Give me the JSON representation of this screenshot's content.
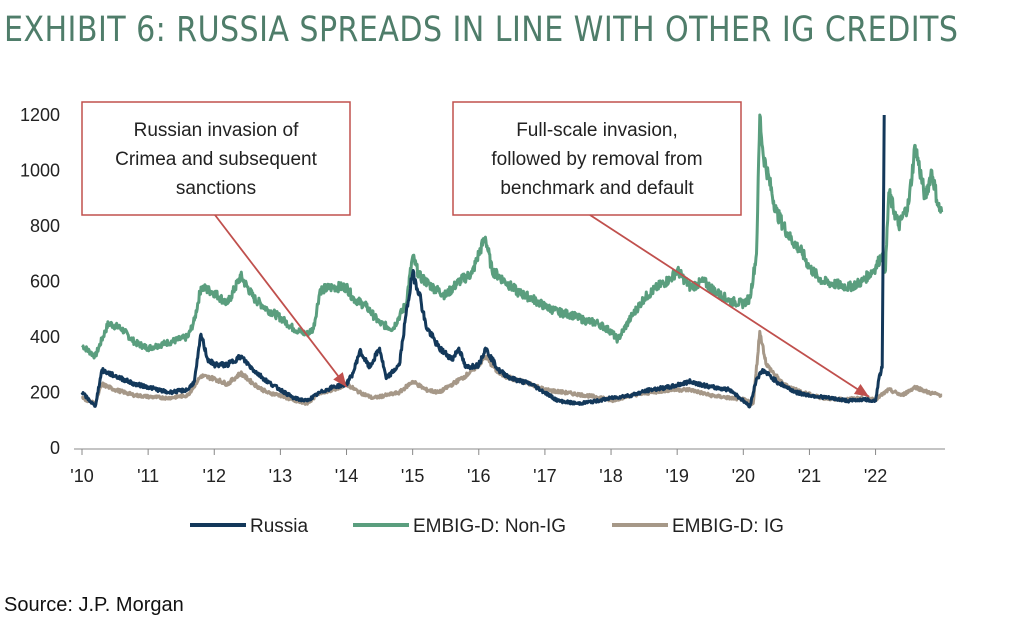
{
  "title": "EXHIBIT 6: RUSSIA SPREADS IN LINE WITH OTHER IG CREDITS",
  "source": "Source: J.P. Morgan",
  "chart_data": {
    "type": "line",
    "ylim": [
      0,
      1200
    ],
    "yticks": [
      0,
      200,
      400,
      600,
      800,
      1000,
      1200
    ],
    "xlim": [
      2010,
      2023
    ],
    "xticks": [
      {
        "value": 2010,
        "label": "'10"
      },
      {
        "value": 2011,
        "label": "'11"
      },
      {
        "value": 2012,
        "label": "'12"
      },
      {
        "value": 2013,
        "label": "'13"
      },
      {
        "value": 2014,
        "label": "'14"
      },
      {
        "value": 2015,
        "label": "'15"
      },
      {
        "value": 2016,
        "label": "'16"
      },
      {
        "value": 2017,
        "label": "'17"
      },
      {
        "value": 2018,
        "label": "'18"
      },
      {
        "value": 2019,
        "label": "'19"
      },
      {
        "value": 2020,
        "label": "'20"
      },
      {
        "value": 2021,
        "label": "'21"
      },
      {
        "value": 2022,
        "label": "'22"
      }
    ],
    "legend_position": "bottom",
    "series": [
      {
        "name": "EMBIG-D: Non-IG",
        "color": "#5a9e7e",
        "points": [
          [
            2010.0,
            370
          ],
          [
            2010.2,
            330
          ],
          [
            2010.4,
            450
          ],
          [
            2010.6,
            430
          ],
          [
            2010.8,
            380
          ],
          [
            2011.0,
            360
          ],
          [
            2011.3,
            380
          ],
          [
            2011.6,
            400
          ],
          [
            2011.7,
            460
          ],
          [
            2011.8,
            580
          ],
          [
            2012.0,
            560
          ],
          [
            2012.2,
            520
          ],
          [
            2012.4,
            620
          ],
          [
            2012.6,
            540
          ],
          [
            2012.8,
            500
          ],
          [
            2013.0,
            470
          ],
          [
            2013.2,
            430
          ],
          [
            2013.4,
            410
          ],
          [
            2013.5,
            430
          ],
          [
            2013.6,
            570
          ],
          [
            2013.8,
            580
          ],
          [
            2014.0,
            580
          ],
          [
            2014.1,
            540
          ],
          [
            2014.3,
            510
          ],
          [
            2014.5,
            450
          ],
          [
            2014.7,
            430
          ],
          [
            2014.9,
            520
          ],
          [
            2015.0,
            690
          ],
          [
            2015.1,
            620
          ],
          [
            2015.3,
            580
          ],
          [
            2015.5,
            550
          ],
          [
            2015.7,
            600
          ],
          [
            2015.9,
            630
          ],
          [
            2016.0,
            700
          ],
          [
            2016.1,
            760
          ],
          [
            2016.2,
            640
          ],
          [
            2016.4,
            600
          ],
          [
            2016.6,
            560
          ],
          [
            2016.8,
            540
          ],
          [
            2017.0,
            510
          ],
          [
            2017.2,
            490
          ],
          [
            2017.4,
            480
          ],
          [
            2017.6,
            460
          ],
          [
            2017.8,
            450
          ],
          [
            2018.0,
            420
          ],
          [
            2018.1,
            390
          ],
          [
            2018.3,
            470
          ],
          [
            2018.5,
            540
          ],
          [
            2018.7,
            580
          ],
          [
            2018.9,
            610
          ],
          [
            2019.0,
            640
          ],
          [
            2019.2,
            580
          ],
          [
            2019.4,
            600
          ],
          [
            2019.6,
            560
          ],
          [
            2019.8,
            530
          ],
          [
            2020.0,
            520
          ],
          [
            2020.1,
            540
          ],
          [
            2020.2,
            700
          ],
          [
            2020.25,
            1200
          ],
          [
            2020.3,
            1060
          ],
          [
            2020.5,
            850
          ],
          [
            2020.7,
            760
          ],
          [
            2020.9,
            700
          ],
          [
            2021.0,
            650
          ],
          [
            2021.2,
            600
          ],
          [
            2021.4,
            590
          ],
          [
            2021.6,
            580
          ],
          [
            2021.8,
            600
          ],
          [
            2022.0,
            650
          ],
          [
            2022.1,
            700
          ],
          [
            2022.15,
            640
          ],
          [
            2022.2,
            920
          ],
          [
            2022.35,
            800
          ],
          [
            2022.5,
            880
          ],
          [
            2022.6,
            1090
          ],
          [
            2022.75,
            900
          ],
          [
            2022.85,
            1000
          ],
          [
            2022.95,
            870
          ],
          [
            2023.0,
            850
          ]
        ]
      },
      {
        "name": "EMBIG-D: IG",
        "color": "#a69888",
        "points": [
          [
            2010.0,
            180
          ],
          [
            2010.2,
            160
          ],
          [
            2010.3,
            230
          ],
          [
            2010.5,
            210
          ],
          [
            2010.8,
            190
          ],
          [
            2011.0,
            185
          ],
          [
            2011.3,
            180
          ],
          [
            2011.6,
            190
          ],
          [
            2011.8,
            260
          ],
          [
            2012.0,
            250
          ],
          [
            2012.2,
            230
          ],
          [
            2012.4,
            270
          ],
          [
            2012.6,
            230
          ],
          [
            2012.8,
            200
          ],
          [
            2013.0,
            190
          ],
          [
            2013.2,
            170
          ],
          [
            2013.4,
            160
          ],
          [
            2013.6,
            200
          ],
          [
            2013.8,
            210
          ],
          [
            2014.0,
            230
          ],
          [
            2014.2,
            200
          ],
          [
            2014.4,
            180
          ],
          [
            2014.6,
            190
          ],
          [
            2014.8,
            200
          ],
          [
            2015.0,
            240
          ],
          [
            2015.2,
            210
          ],
          [
            2015.4,
            200
          ],
          [
            2015.6,
            230
          ],
          [
            2015.8,
            260
          ],
          [
            2016.0,
            300
          ],
          [
            2016.1,
            330
          ],
          [
            2016.3,
            270
          ],
          [
            2016.5,
            250
          ],
          [
            2016.8,
            230
          ],
          [
            2017.0,
            210
          ],
          [
            2017.3,
            200
          ],
          [
            2017.6,
            190
          ],
          [
            2017.9,
            180
          ],
          [
            2018.0,
            170
          ],
          [
            2018.3,
            190
          ],
          [
            2018.6,
            200
          ],
          [
            2018.9,
            210
          ],
          [
            2019.2,
            210
          ],
          [
            2019.5,
            190
          ],
          [
            2019.8,
            180
          ],
          [
            2020.0,
            175
          ],
          [
            2020.15,
            160
          ],
          [
            2020.25,
            420
          ],
          [
            2020.35,
            300
          ],
          [
            2020.6,
            230
          ],
          [
            2020.9,
            200
          ],
          [
            2021.2,
            180
          ],
          [
            2021.5,
            175
          ],
          [
            2021.8,
            180
          ],
          [
            2022.0,
            175
          ],
          [
            2022.2,
            210
          ],
          [
            2022.4,
            190
          ],
          [
            2022.6,
            220
          ],
          [
            2022.8,
            200
          ],
          [
            2023.0,
            190
          ]
        ]
      },
      {
        "name": "Russia",
        "color": "#13385a",
        "points": [
          [
            2010.0,
            200
          ],
          [
            2010.2,
            150
          ],
          [
            2010.3,
            280
          ],
          [
            2010.5,
            260
          ],
          [
            2010.8,
            230
          ],
          [
            2011.0,
            220
          ],
          [
            2011.3,
            200
          ],
          [
            2011.6,
            210
          ],
          [
            2011.7,
            240
          ],
          [
            2011.8,
            410
          ],
          [
            2011.9,
            320
          ],
          [
            2012.0,
            300
          ],
          [
            2012.2,
            300
          ],
          [
            2012.4,
            330
          ],
          [
            2012.6,
            280
          ],
          [
            2012.8,
            240
          ],
          [
            2013.0,
            210
          ],
          [
            2013.2,
            180
          ],
          [
            2013.4,
            170
          ],
          [
            2013.6,
            200
          ],
          [
            2013.8,
            220
          ],
          [
            2014.0,
            230
          ],
          [
            2014.1,
            270
          ],
          [
            2014.2,
            350
          ],
          [
            2014.35,
            290
          ],
          [
            2014.5,
            360
          ],
          [
            2014.6,
            250
          ],
          [
            2014.8,
            300
          ],
          [
            2014.9,
            480
          ],
          [
            2015.0,
            630
          ],
          [
            2015.1,
            560
          ],
          [
            2015.2,
            440
          ],
          [
            2015.4,
            360
          ],
          [
            2015.6,
            320
          ],
          [
            2015.7,
            360
          ],
          [
            2015.8,
            290
          ],
          [
            2016.0,
            300
          ],
          [
            2016.1,
            360
          ],
          [
            2016.3,
            280
          ],
          [
            2016.5,
            250
          ],
          [
            2016.8,
            230
          ],
          [
            2017.0,
            200
          ],
          [
            2017.2,
            170
          ],
          [
            2017.5,
            160
          ],
          [
            2017.8,
            170
          ],
          [
            2018.0,
            180
          ],
          [
            2018.3,
            190
          ],
          [
            2018.6,
            210
          ],
          [
            2018.9,
            220
          ],
          [
            2019.2,
            240
          ],
          [
            2019.5,
            220
          ],
          [
            2019.8,
            210
          ],
          [
            2020.0,
            170
          ],
          [
            2020.1,
            150
          ],
          [
            2020.2,
            250
          ],
          [
            2020.3,
            280
          ],
          [
            2020.5,
            240
          ],
          [
            2020.8,
            200
          ],
          [
            2021.0,
            190
          ],
          [
            2021.3,
            180
          ],
          [
            2021.6,
            170
          ],
          [
            2021.8,
            175
          ],
          [
            2022.0,
            170
          ],
          [
            2022.05,
            250
          ],
          [
            2022.1,
            290
          ],
          [
            2022.13,
            1200
          ]
        ]
      }
    ],
    "annotations": [
      {
        "lines": [
          "Russian invasion of",
          "Crimea and subsequent",
          "sanctions"
        ],
        "target": [
          2014.0,
          220
        ]
      },
      {
        "lines": [
          "Full-scale invasion,",
          "followed by removal from",
          "benchmark and default"
        ],
        "target": [
          2021.9,
          185
        ]
      }
    ]
  }
}
